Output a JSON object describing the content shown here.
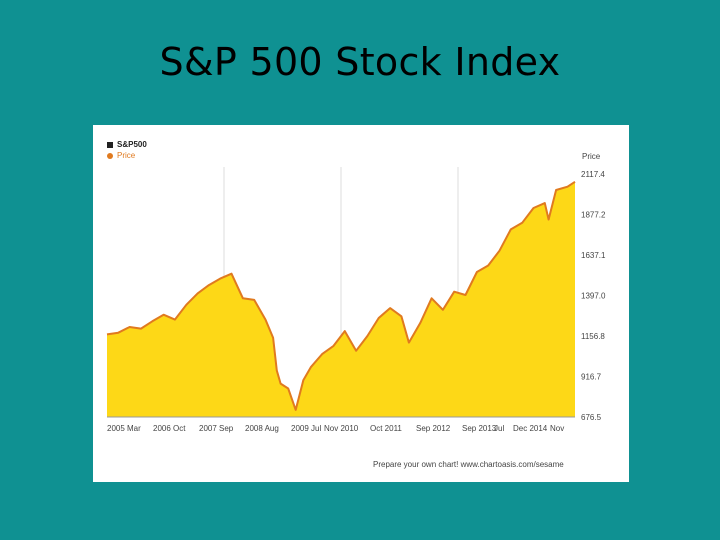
{
  "slide": {
    "title": "S&P 500 Stock Index"
  },
  "chart_data": {
    "type": "area",
    "title": "S&P500",
    "legend": {
      "label": "S&P500",
      "sublabel": "Price",
      "placement": "top-left"
    },
    "ylabel": "Price",
    "ylim": [
      676.5,
      2200
    ],
    "y_ticks": [
      "2117.4",
      "1877.2",
      "1637.1",
      "1397.0",
      "1156.8",
      "916.7",
      "676.5"
    ],
    "x_ticks": [
      "2005 Mar",
      "2006 Oct",
      "2007 Sep",
      "2008 Aug",
      "2009 Jul",
      "Nov 2010",
      "Oct 2011",
      "Sep 2012",
      "Sep 2013",
      "Jul",
      "Dec 2014",
      "Nov"
    ],
    "grid": true,
    "colors": {
      "fill": "#fdd817",
      "line": "#e07a1f",
      "grid": "#dddddd",
      "background": "#ffffff"
    },
    "series": [
      {
        "name": "Price",
        "x": [
          "2005-01",
          "2005-04",
          "2005-07",
          "2005-10",
          "2006-01",
          "2006-04",
          "2006-07",
          "2006-10",
          "2007-01",
          "2007-04",
          "2007-07",
          "2007-10",
          "2008-01",
          "2008-04",
          "2008-07",
          "2008-09",
          "2008-10",
          "2008-11",
          "2009-01",
          "2009-03",
          "2009-05",
          "2009-07",
          "2009-10",
          "2010-01",
          "2010-04",
          "2010-07",
          "2010-10",
          "2011-01",
          "2011-04",
          "2011-07",
          "2011-09",
          "2011-12",
          "2012-03",
          "2012-06",
          "2012-09",
          "2012-12",
          "2013-03",
          "2013-06",
          "2013-09",
          "2013-12",
          "2014-03",
          "2014-06",
          "2014-09",
          "2014-10",
          "2014-12",
          "2015-03",
          "2015-05"
        ],
        "values": [
          1180,
          1190,
          1225,
          1215,
          1260,
          1300,
          1270,
          1360,
          1430,
          1480,
          1520,
          1550,
          1400,
          1390,
          1270,
          1160,
          960,
          880,
          850,
          720,
          900,
          980,
          1060,
          1110,
          1200,
          1080,
          1170,
          1280,
          1340,
          1290,
          1130,
          1250,
          1400,
          1330,
          1440,
          1420,
          1560,
          1600,
          1690,
          1820,
          1860,
          1950,
          1980,
          1880,
          2060,
          2080,
          2110
        ]
      }
    ]
  },
  "footer": {
    "credit": "Prepare your own chart! www.chartoasis.com/sesame"
  }
}
